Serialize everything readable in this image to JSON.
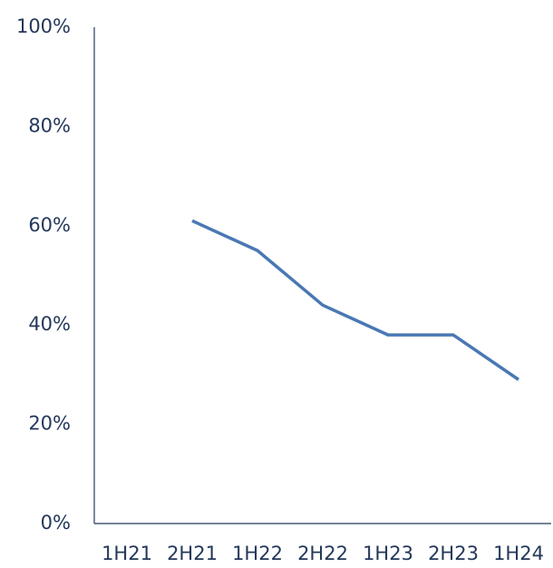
{
  "chart_data": {
    "type": "line",
    "categories": [
      "1H21",
      "2H21",
      "1H22",
      "2H22",
      "1H23",
      "2H23",
      "1H24"
    ],
    "series": [
      {
        "color": "#4a78b4",
        "values": [
          null,
          61,
          55,
          44,
          38,
          38,
          29
        ]
      }
    ],
    "ylim": [
      0,
      100
    ],
    "yticks": [
      {
        "value": 0,
        "label": "0%"
      },
      {
        "value": 20,
        "label": "20%"
      },
      {
        "value": 40,
        "label": "40%"
      },
      {
        "value": 60,
        "label": "60%"
      },
      {
        "value": 80,
        "label": "80%"
      },
      {
        "value": 100,
        "label": "100%"
      }
    ],
    "grid": false
  }
}
